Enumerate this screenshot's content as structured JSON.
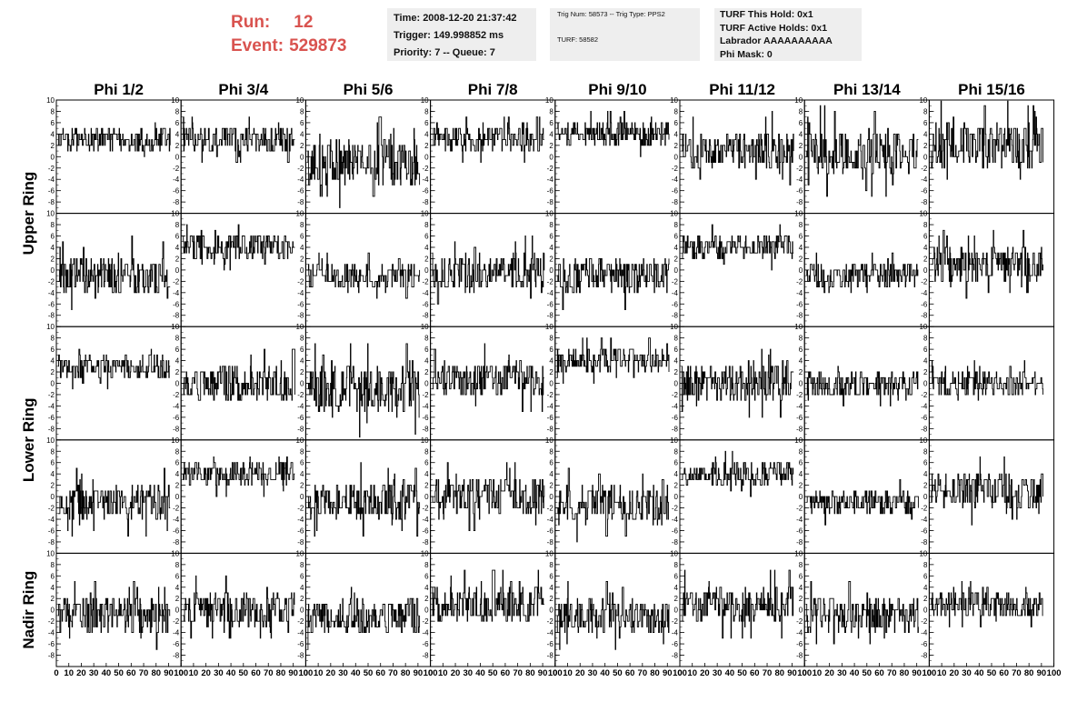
{
  "header": {
    "run_label": "Run:",
    "run_value": "12",
    "event_label": "Event:",
    "event_value": "529873",
    "time": "Time: 2008-12-20 21:37:42",
    "trigger": "Trigger: 149.998852 ms",
    "priority": "Priority: 7 -- Queue: 7",
    "trig_num": "Trig Num: 58573 -- Trig Type: PPS2",
    "turf": "TURF: 58582",
    "turf_this_hold": "TURF This Hold: 0x1",
    "turf_active_holds": "TURF Active Holds: 0x1",
    "labrador": "Labrador AAAAAAAAAA",
    "phi_mask": "Phi Mask: 0",
    "accent_color": "#d9534f",
    "box_color": "#eeeeee"
  },
  "chart_data": {
    "type": "line",
    "columns": [
      "Phi 1/2",
      "Phi 3/4",
      "Phi 5/6",
      "Phi 7/8",
      "Phi 9/10",
      "Phi 11/12",
      "Phi 13/14",
      "Phi 15/16"
    ],
    "row_labels": [
      "Upper Ring",
      "Lower Ring",
      "Nadir Ring"
    ],
    "rows_per_label": [
      2,
      2,
      1
    ],
    "ylim": [
      -10,
      10
    ],
    "xlim": [
      0,
      100
    ],
    "y_ticks": [
      "-8",
      "-6",
      "-4",
      "-2",
      "0",
      "2",
      "4",
      "6",
      "8",
      "10"
    ],
    "x_ticks": [
      "0",
      "10",
      "20",
      "30",
      "40",
      "50",
      "60",
      "70",
      "80",
      "90",
      "100"
    ],
    "grid": false,
    "panel_levels": [
      [
        {
          "mid": 3,
          "amp": 2
        },
        {
          "mid": 3,
          "amp": 2
        },
        {
          "mid": -1,
          "amp": 4
        },
        {
          "mid": 3,
          "amp": 2
        },
        {
          "mid": 4,
          "amp": 2
        },
        {
          "mid": 1,
          "amp": 3
        },
        {
          "mid": 1,
          "amp": 4
        },
        {
          "mid": 2,
          "amp": 4
        }
      ],
      [
        {
          "mid": -1,
          "amp": 3
        },
        {
          "mid": 4,
          "amp": 2
        },
        {
          "mid": -1,
          "amp": 2
        },
        {
          "mid": 0,
          "amp": 3
        },
        {
          "mid": -1,
          "amp": 3
        },
        {
          "mid": 4,
          "amp": 2
        },
        {
          "mid": -1,
          "amp": 2
        },
        {
          "mid": 1,
          "amp": 3
        }
      ],
      [
        {
          "mid": 3,
          "amp": 2
        },
        {
          "mid": 0,
          "amp": 3
        },
        {
          "mid": -1,
          "amp": 4
        },
        {
          "mid": 1,
          "amp": 3
        },
        {
          "mid": 4,
          "amp": 2
        },
        {
          "mid": 0,
          "amp": 3
        },
        {
          "mid": 0,
          "amp": 2
        },
        {
          "mid": 0,
          "amp": 2
        }
      ],
      [
        {
          "mid": -1,
          "amp": 3
        },
        {
          "mid": 4,
          "amp": 2
        },
        {
          "mid": -1,
          "amp": 3
        },
        {
          "mid": 0,
          "amp": 3
        },
        {
          "mid": -1,
          "amp": 3
        },
        {
          "mid": 4,
          "amp": 2
        },
        {
          "mid": -1,
          "amp": 2
        },
        {
          "mid": 1,
          "amp": 3
        }
      ],
      [
        {
          "mid": -1,
          "amp": 3
        },
        {
          "mid": 0,
          "amp": 3
        },
        {
          "mid": -1,
          "amp": 3
        },
        {
          "mid": 1,
          "amp": 3
        },
        {
          "mid": -1,
          "amp": 3
        },
        {
          "mid": 1,
          "amp": 3
        },
        {
          "mid": -1,
          "amp": 3
        },
        {
          "mid": 1,
          "amp": 2
        }
      ]
    ]
  }
}
